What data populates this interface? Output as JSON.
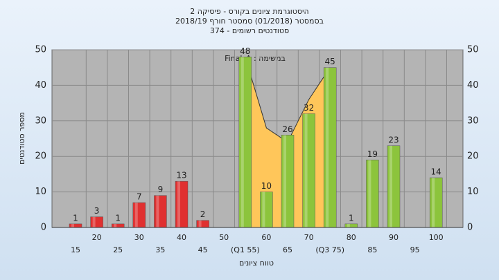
{
  "chart_data": {
    "type": "bar",
    "title": "היסטוגרמת ציונים בקורס - פיסיקה 2",
    "subtitle": "בסמסטר (01/2018) סמסטר חורף 2018/19",
    "subtitle2": "סטודנטים רשומים - 374",
    "annotation": "Final_A : במשימה",
    "y_label": "מספר סטודנטים",
    "x_label": "טווח ציונים",
    "categories": [
      "15",
      "20",
      "25",
      "30",
      "35",
      "40",
      "45",
      "50",
      "(Q1 55)",
      "60",
      "65",
      "70",
      "(Q3 75)",
      "80",
      "85",
      "90",
      "95",
      "100"
    ],
    "values": [
      1,
      3,
      1,
      7,
      9,
      13,
      2,
      null,
      48,
      10,
      26,
      32,
      45,
      1,
      19,
      23,
      null,
      14
    ],
    "colors": [
      "#e03030",
      "#e03030",
      "#e03030",
      "#e03030",
      "#e03030",
      "#e03030",
      "#e03030",
      "#e03030",
      "#8cc43c",
      "#8cc43c",
      "#8cc43c",
      "#8cc43c",
      "#8cc43c",
      "#8cc43c",
      "#8cc43c",
      "#8cc43c",
      "#8cc43c",
      "#8cc43c"
    ],
    "overlay": {
      "color": "#ffc65a",
      "values": [
        null,
        null,
        null,
        null,
        null,
        null,
        null,
        null,
        48,
        28,
        24,
        36,
        45,
        null,
        null,
        null,
        null,
        null
      ]
    },
    "ylim": [
      0,
      50
    ],
    "yticks": [
      0,
      10,
      20,
      30,
      40,
      50
    ],
    "grid": true
  }
}
